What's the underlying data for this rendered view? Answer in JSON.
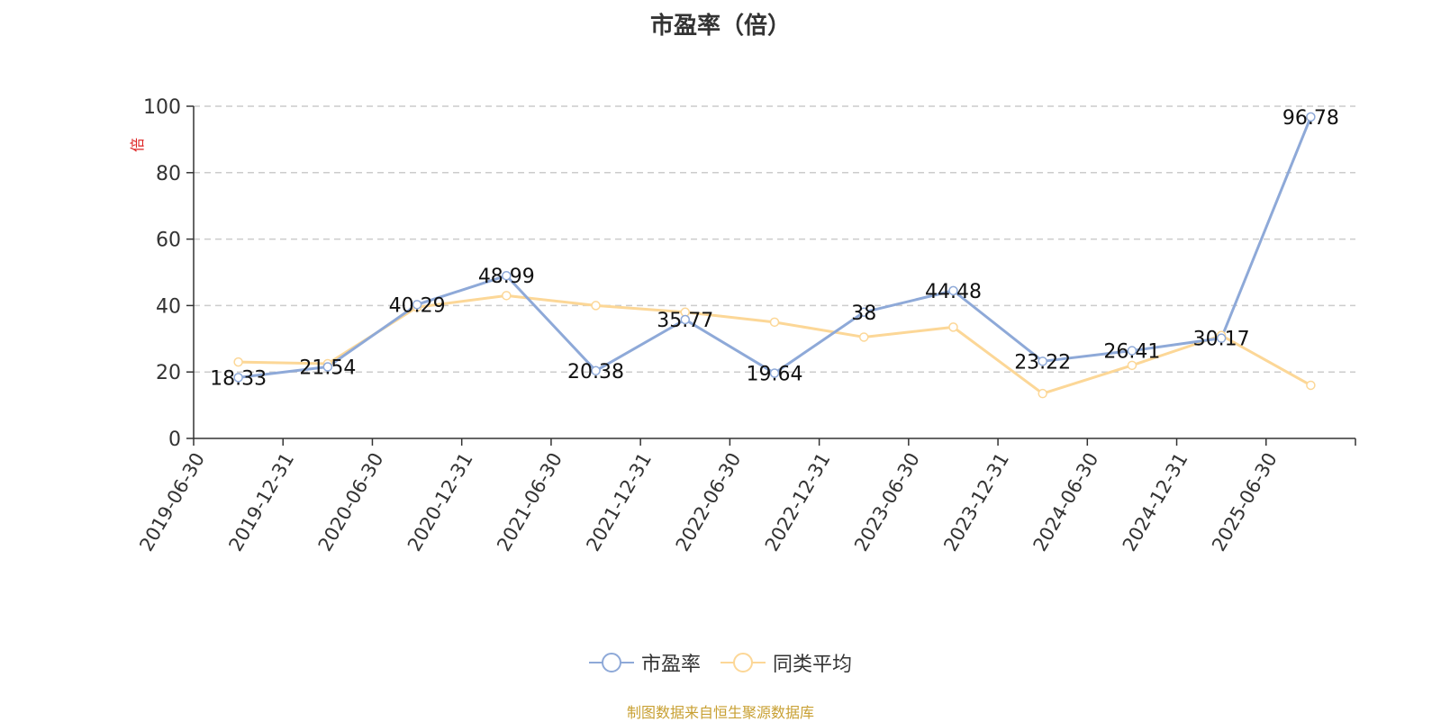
{
  "chart_data": {
    "type": "line",
    "title": "市盈率（倍）",
    "ylabel": "倍",
    "xlabel": "",
    "ylim": [
      0,
      100
    ],
    "yticks": [
      0,
      20,
      40,
      60,
      80,
      100
    ],
    "grid": true,
    "legend_placement": "bottom-center",
    "categories": [
      "2019-06-30",
      "2019-12-31",
      "2020-06-30",
      "2020-12-31",
      "2021-06-30",
      "2021-12-31",
      "2022-06-30",
      "2022-12-31",
      "2023-06-30",
      "2023-12-31",
      "2024-06-30",
      "2024-12-31",
      "2025-06-30"
    ],
    "series": [
      {
        "name": "市盈率",
        "color": "#8ea9d8",
        "values": [
          18.33,
          21.54,
          40.29,
          48.99,
          20.38,
          35.77,
          19.64,
          38,
          44.48,
          23.22,
          26.41,
          30.17,
          96.78
        ],
        "data_labels": [
          "18.33",
          "21.54",
          "40.29",
          "48.99",
          "20.38",
          "35.77",
          "19.64",
          "38",
          "44.48",
          "23.22",
          "26.41",
          "30.17",
          "96.78"
        ]
      },
      {
        "name": "同类平均",
        "color": "#fcd797",
        "values": [
          23,
          22.5,
          39.5,
          43,
          40,
          38,
          35,
          30.5,
          33.5,
          13.5,
          22,
          31,
          16
        ]
      }
    ]
  },
  "footer": {
    "source": "制图数据来自恒生聚源数据库"
  }
}
